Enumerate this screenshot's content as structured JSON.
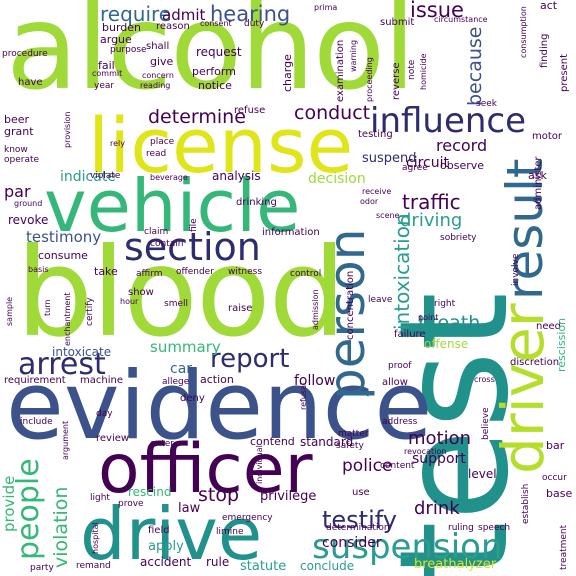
{
  "palette": {
    "purple": "#440154",
    "indigo": "#3b528b",
    "navy": "#2c2c6e",
    "blue": "#31688e",
    "teal": "#21918c",
    "seagreen": "#2a9d8f",
    "green": "#35b779",
    "lime": "#a0da39",
    "yellowgreen": "#b5de2b",
    "yellow": "#e0e51a"
  },
  "words": {
    "alcohol": "alcohol",
    "test": "test",
    "blood": "blood",
    "evidence": "evidence",
    "license": "license",
    "vehicle": "vehicle",
    "officer": "officer",
    "drive": "drive",
    "driver": "driver",
    "result": "result",
    "person": "person",
    "section": "section",
    "influence": "influence",
    "suspension": "suspension",
    "arrest": "arrest",
    "report": "report",
    "people": "people",
    "testify": "testify",
    "intoxication": "intoxication",
    "determine": "determine",
    "conduct": "conduct",
    "because": "because",
    "violation": "violation",
    "hearing": "hearing",
    "require": "require",
    "admit": "admit",
    "issue": "issue",
    "testimony": "testimony",
    "traffic": "traffic",
    "driving": "driving",
    "breath": "breath",
    "motion": "motion",
    "police": "police",
    "stop": "stop",
    "drink": "drink",
    "support": "support",
    "summary": "summary",
    "provide": "provide",
    "record": "record",
    "circuit": "circuit",
    "suspend": "suspend",
    "decision": "decision",
    "indicate": "indicate",
    "par": "par",
    "intoxicate": "intoxicate",
    "car": "car",
    "revoke": "revoke",
    "privilege": "privilege",
    "follow": "follow",
    "law": "law",
    "apply": "apply",
    "consider": "consider",
    "conclude": "conclude",
    "statute": "statute",
    "accident": "accident",
    "rule": "rule",
    "rescind": "rescind",
    "breathalyzer": "breathalyzer",
    "standard": "standard",
    "contend": "contend",
    "level": "level",
    "consume": "consume",
    "beer": "beer",
    "grant": "grant",
    "observe": "observe",
    "analysis": "analysis",
    "refuse": "refuse",
    "ask": "ask",
    "take": "take",
    "review": "review",
    "deny": "deny",
    "action": "action",
    "show": "show",
    "motor": "motor",
    "need": "need",
    "rescission": "rescission",
    "offense": "offense",
    "concentration": "concentration",
    "request": "request",
    "charge": "charge",
    "perform": "perform",
    "notice": "notice",
    "give": "give",
    "fail": "fail",
    "argue": "argue",
    "burden": "burden",
    "reason": "reason",
    "shall": "shall",
    "submit": "submit",
    "duty": "duty",
    "consent": "consent",
    "circumstance": "circumstance",
    "act": "act",
    "present": "present",
    "finding": "finding",
    "procedure": "procedure",
    "purpose": "purpose",
    "commit": "commit",
    "year": "year",
    "concern": "concern",
    "reading": "reading",
    "have": "have",
    "know": "know",
    "operate": "operate",
    "provision": "provision",
    "examination": "examination",
    "proceeding": "proceeding",
    "note": "note",
    "homicide": "homicide",
    "reverse": "reverse",
    "warning": "warning",
    "prima": "prima",
    "consumption": "consumption",
    "testing": "testing",
    "rely": "rely",
    "place": "place",
    "read": "read",
    "seek": "seek",
    "administer": "administer",
    "violate": "violate",
    "beverage": "beverage",
    "drinking": "drinking",
    "file": "file",
    "claim": "claim",
    "contain": "contain",
    "information": "information",
    "receive": "receive",
    "odor": "odor",
    "agree": "agree",
    "scene": "scene",
    "sobriety": "sobriety",
    "involve": "involve",
    "affirm": "affirm",
    "offender": "offender",
    "witness": "witness",
    "control": "control",
    "leave": "leave",
    "right": "right",
    "point": "point",
    "failure": "failure",
    "discretion": "discretion",
    "smell": "smell",
    "raise": "raise",
    "certify": "certify",
    "machine": "machine",
    "allege": "allege",
    "allow": "allow",
    "proof": "proof",
    "cross": "cross",
    "requirement": "requirement",
    "basis": "basis",
    "sample": "sample",
    "include": "include",
    "day": "day",
    "address": "address",
    "believe": "believe",
    "revocation": "revocation",
    "occur": "occur",
    "base": "base",
    "establish": "establish",
    "treatment": "treatment",
    "speech": "speech",
    "ruling": "ruling",
    "determination": "determination",
    "emergency": "emergency",
    "limine": "limine",
    "field": "field",
    "hospital": "hospital",
    "party": "party",
    "remand": "remand",
    "enter": "enter",
    "individual": "individual",
    "light": "light",
    "argument": "argument",
    "prove": "prove",
    "content": "content",
    "matter": "matter",
    "safety": "safety",
    "use": "use",
    "bar": "bar",
    "ground": "ground",
    "refusal": "refusal",
    "admission": "admission",
    "hour": "hour",
    "turn": "turn",
    "enchantment": "enchantment",
    "hold": "hold",
    "mean": "mean",
    "sign": "sign",
    "case": "case",
    "ground2": "ground"
  }
}
